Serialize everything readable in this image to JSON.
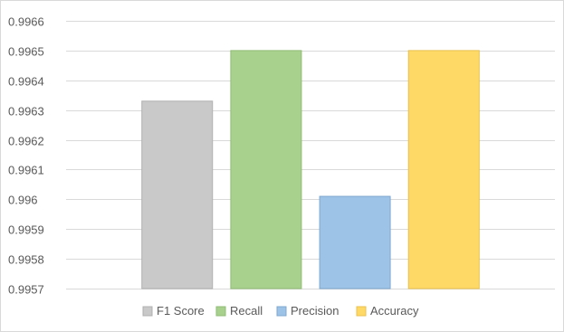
{
  "chart_data": {
    "type": "bar",
    "title": "",
    "xlabel": "",
    "ylabel": "",
    "ylim": [
      0.9957,
      0.9966
    ],
    "yticks": [
      "0.9957",
      "0.9958",
      "0.9959",
      "0.996",
      "0.9961",
      "0.9962",
      "0.9963",
      "0.9964",
      "0.9965",
      "0.9966"
    ],
    "grid": true,
    "legend_position": "bottom",
    "series": [
      {
        "name": "F1 Score",
        "value": 0.99633,
        "fill": "#c9c9c9",
        "stroke": "#b0b0b0"
      },
      {
        "name": "Recall",
        "value": 0.9965,
        "fill": "#a9d18e",
        "stroke": "#8fbc74"
      },
      {
        "name": "Precision",
        "value": 0.99601,
        "fill": "#9dc3e6",
        "stroke": "#7fa8d0"
      },
      {
        "name": "Accuracy",
        "value": 0.9965,
        "fill": "#ffd966",
        "stroke": "#e8c14f"
      }
    ]
  }
}
